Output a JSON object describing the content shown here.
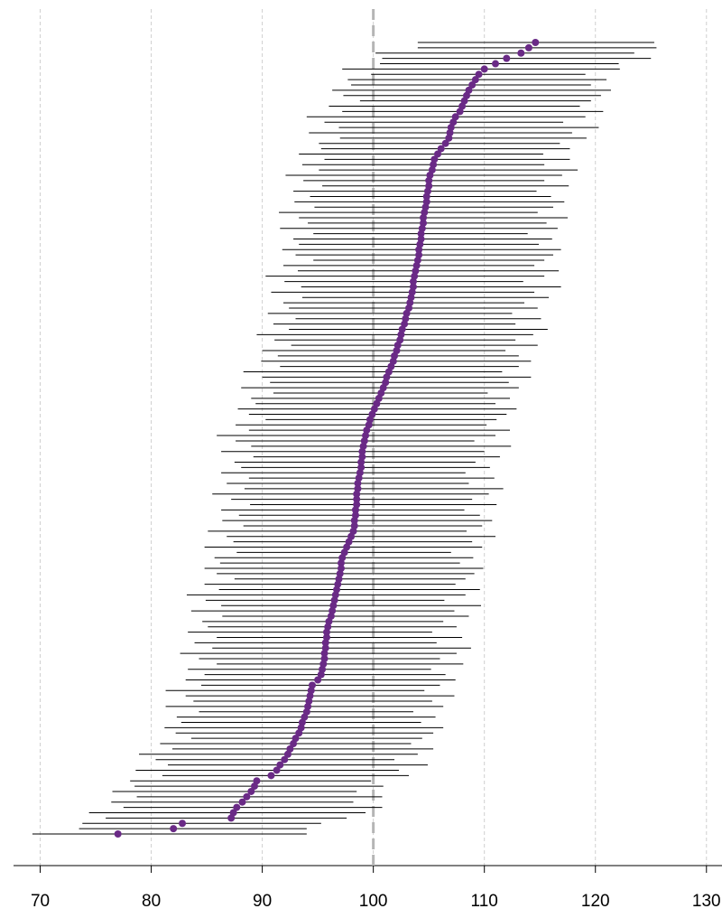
{
  "chart_data": {
    "type": "caterpillar",
    "xlim": [
      67.6,
      131.4
    ],
    "xticks": [
      70,
      80,
      90,
      100,
      110,
      120,
      130
    ],
    "grid": true,
    "refline": 100,
    "color": "#6a2a86",
    "values": [
      77,
      82,
      82.8,
      87.2,
      87.4,
      87.7,
      88.2,
      88.6,
      89.0,
      89.3,
      89.5,
      90.8,
      91.3,
      91.6,
      92.0,
      92.3,
      92.5,
      92.8,
      93.0,
      93.3,
      93.5,
      93.6,
      93.8,
      94.0,
      94.1,
      94.2,
      94.3,
      94.4,
      94.5,
      95.0,
      95.3,
      95.4,
      95.5,
      95.6,
      95.6,
      95.7,
      95.7,
      95.8,
      95.8,
      95.9,
      96.0,
      96.2,
      96.3,
      96.4,
      96.5,
      96.6,
      96.7,
      96.8,
      96.9,
      97.0,
      97.1,
      97.1,
      97.2,
      97.4,
      97.6,
      97.8,
      98.0,
      98.2,
      98.3,
      98.3,
      98.4,
      98.4,
      98.5,
      98.5,
      98.5,
      98.6,
      98.6,
      98.7,
      98.8,
      98.9,
      98.9,
      99.0,
      99.0,
      99.1,
      99.2,
      99.3,
      99.4,
      99.6,
      99.7,
      99.9,
      100.1,
      100.3,
      100.5,
      100.7,
      100.9,
      101.1,
      101.2,
      101.4,
      101.6,
      101.8,
      101.9,
      102.1,
      102.2,
      102.4,
      102.5,
      102.6,
      102.8,
      102.9,
      103.0,
      103.2,
      103.3,
      103.4,
      103.5,
      103.6,
      103.6,
      103.7,
      103.8,
      103.9,
      104.0,
      104.1,
      104.1,
      104.2,
      104.3,
      104.3,
      104.4,
      104.5,
      104.5,
      104.6,
      104.7,
      104.8,
      104.8,
      104.9,
      105.0,
      105.0,
      105.1,
      105.3,
      105.4,
      105.5,
      105.8,
      106.1,
      106.5,
      106.8,
      106.9,
      107.0,
      107.2,
      107.4,
      107.8,
      108.0,
      108.2,
      108.4,
      108.6,
      108.9,
      109.2,
      109.5,
      110.0,
      111.0,
      112.0,
      113.3,
      114.0,
      114.6
    ],
    "error_minus": [
      7.7,
      8.5,
      9.0,
      11.3,
      13.0,
      10.2,
      11.8,
      9.9,
      12.5,
      10.8,
      11.4,
      9.8,
      12.7,
      10.1,
      11.6,
      13.4,
      10.6,
      12.0,
      9.4,
      11.1,
      12.3,
      10.9,
      11.5,
      9.7,
      12.8,
      10.4,
      11.2,
      13.1,
      10.0,
      11.9,
      10.5,
      12.1,
      9.6,
      11.3,
      13.0,
      10.2,
      11.8,
      9.9,
      12.5,
      10.8,
      11.4,
      9.8,
      12.7,
      10.1,
      11.6,
      13.4,
      10.6,
      12.0,
      9.4,
      11.1,
      12.3,
      10.9,
      11.5,
      9.7,
      12.8,
      10.4,
      11.2,
      13.1,
      10.0,
      11.9,
      10.5,
      12.1,
      9.6,
      11.3,
      13.0,
      10.2,
      11.8,
      9.9,
      12.5,
      10.8,
      11.4,
      9.8,
      12.7,
      10.1,
      11.6,
      13.4,
      10.6,
      12.0,
      9.4,
      11.1,
      12.3,
      10.9,
      11.5,
      9.7,
      12.8,
      10.4,
      11.2,
      13.1,
      10.0,
      11.9,
      10.5,
      12.1,
      9.6,
      11.3,
      13.0,
      10.2,
      11.8,
      9.9,
      12.5,
      10.8,
      11.4,
      9.8,
      12.7,
      10.1,
      11.6,
      13.4,
      10.6,
      12.0,
      9.4,
      11.1,
      12.3,
      10.9,
      11.5,
      9.7,
      12.8,
      10.4,
      11.2,
      13.1,
      10.0,
      11.9,
      10.5,
      12.1,
      9.6,
      11.3,
      13.0,
      10.2,
      11.8,
      9.9,
      12.5,
      10.8,
      11.4,
      9.8,
      12.7,
      10.1,
      11.6,
      13.4,
      10.6,
      12.0,
      9.4,
      11.1,
      12.3,
      10.9,
      11.5,
      9.7,
      12.8,
      10.4,
      11.2,
      13.1,
      10.0,
      10.6
    ],
    "error_plus": [
      17.0,
      12.0,
      12.5,
      10.4,
      11.9,
      13.1,
      10.0,
      12.2,
      9.5,
      11.6,
      10.3,
      12.4,
      11.0,
      13.3,
      9.9,
      11.7,
      12.9,
      10.6,
      11.4,
      12.1,
      12.8,
      10.7,
      11.8,
      9.6,
      12.2,
      11.1,
      13.0,
      10.2,
      11.5,
      12.4,
      11.2,
      9.8,
      12.6,
      10.4,
      11.9,
      13.1,
      10.0,
      12.2,
      9.5,
      11.6,
      10.3,
      12.4,
      11.0,
      13.3,
      9.9,
      11.7,
      12.9,
      10.6,
      11.4,
      12.1,
      12.8,
      10.7,
      11.8,
      9.6,
      12.2,
      11.1,
      13.0,
      10.2,
      11.5,
      12.4,
      11.2,
      9.8,
      12.6,
      10.4,
      11.9,
      13.1,
      10.0,
      12.2,
      9.5,
      11.6,
      10.3,
      12.4,
      11.0,
      13.3,
      9.9,
      11.7,
      12.9,
      10.6,
      11.4,
      12.1,
      12.8,
      10.7,
      11.8,
      9.6,
      12.2,
      11.1,
      13.0,
      10.2,
      11.5,
      12.4,
      11.2,
      9.8,
      12.6,
      10.4,
      11.9,
      13.1,
      10.0,
      12.2,
      9.5,
      11.6,
      10.3,
      12.4,
      11.0,
      13.3,
      9.9,
      11.7,
      12.9,
      10.6,
      11.4,
      12.1,
      12.8,
      10.7,
      11.8,
      9.6,
      12.2,
      11.1,
      13.0,
      10.2,
      11.5,
      12.4,
      11.2,
      9.8,
      12.6,
      10.4,
      11.9,
      13.1,
      10.0,
      12.2,
      9.5,
      11.6,
      10.3,
      12.4,
      11.0,
      13.3,
      9.9,
      11.7,
      12.9,
      10.6,
      11.4,
      12.1,
      12.8,
      10.7,
      11.8,
      9.6,
      12.2,
      11.1,
      13.0,
      10.2,
      11.5,
      10.7
    ]
  }
}
